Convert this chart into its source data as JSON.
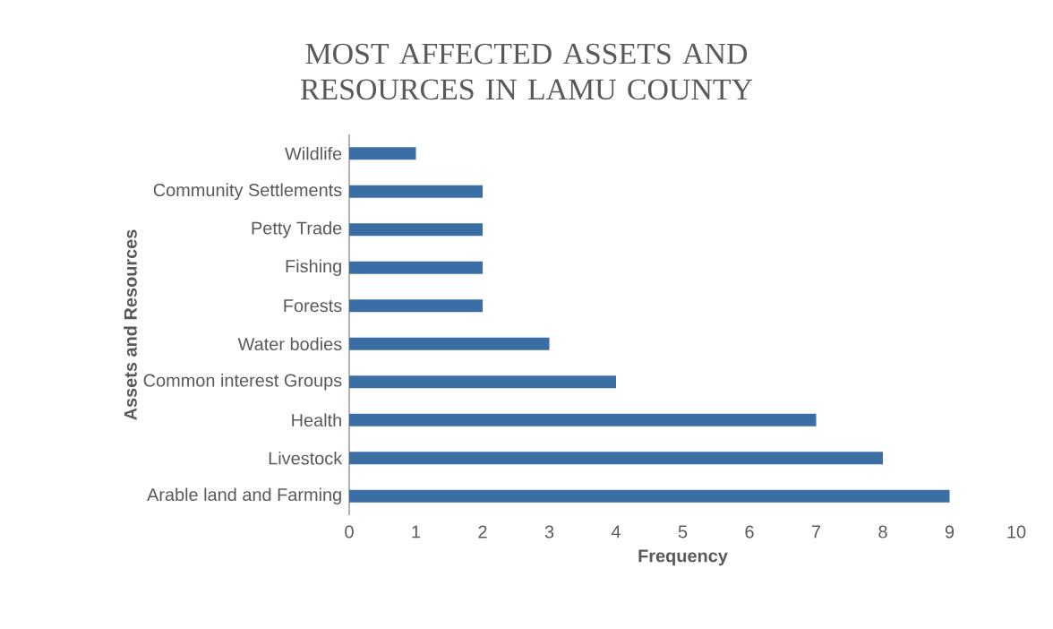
{
  "chart_data": {
    "type": "bar",
    "orientation": "horizontal",
    "title": "MOST AFFECTED ASSETS AND RESOURCES IN LAMU COUNTY",
    "xlabel": "Frequency",
    "ylabel": "Assets and Resources",
    "categories": [
      "Wildlife",
      "Community Settlements",
      "Petty Trade",
      "Fishing",
      "Forests",
      "Water bodies",
      "Common interest Groups",
      "Health",
      "Livestock",
      "Arable land and Farming"
    ],
    "values": [
      1,
      2,
      2,
      2,
      2,
      3,
      4,
      7,
      8,
      9
    ],
    "color": "#3a6ea5",
    "xlim": [
      0,
      10
    ],
    "xticks": [
      0,
      1,
      2,
      3,
      4,
      5,
      6,
      7,
      8,
      9,
      10
    ]
  }
}
